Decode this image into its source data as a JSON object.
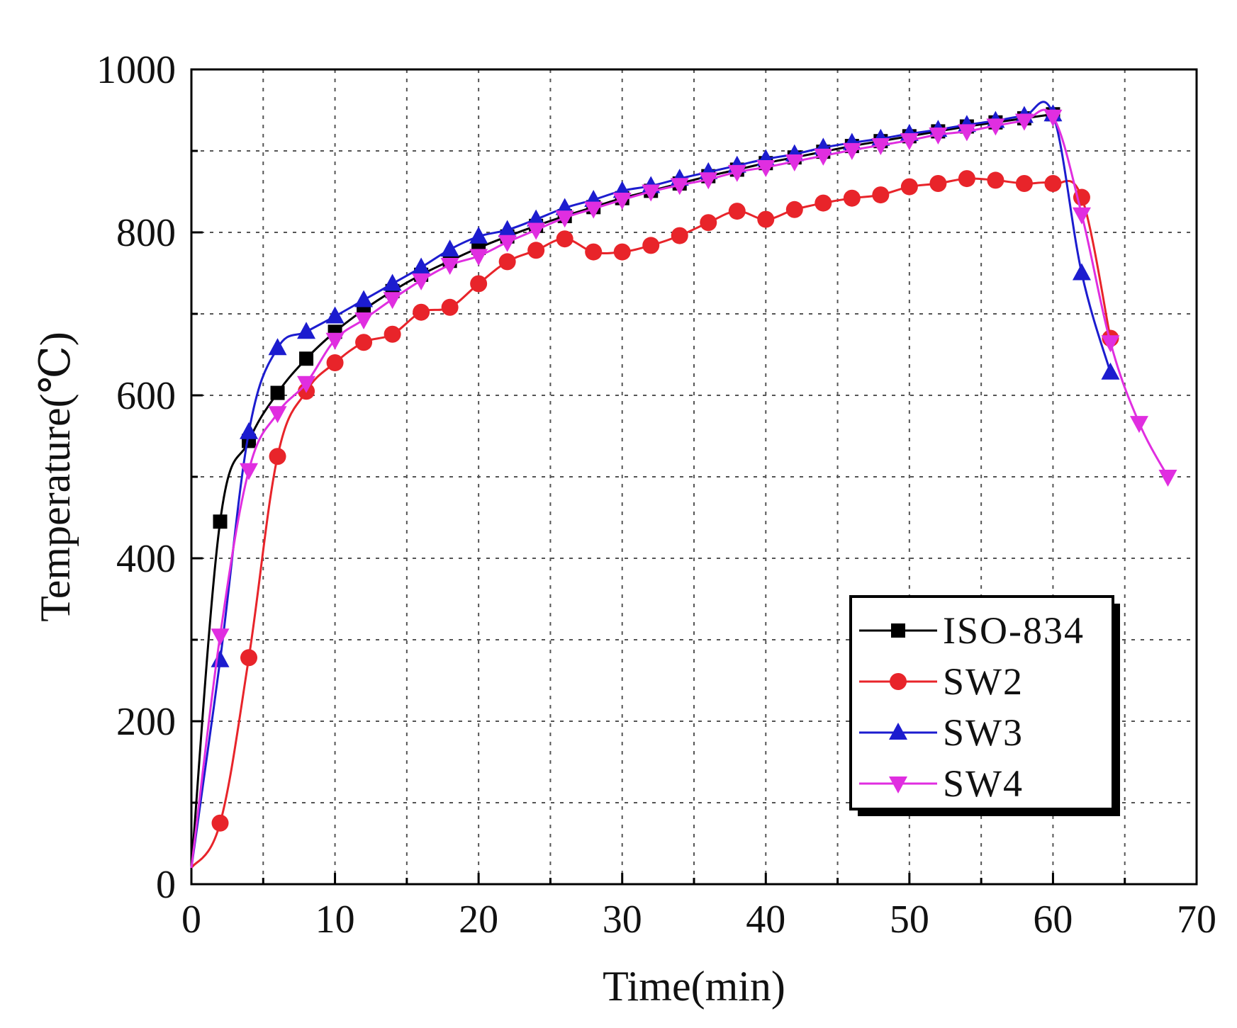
{
  "chart_data": {
    "type": "line",
    "title": "",
    "xlabel": "Time(min)",
    "ylabel": "Temperature(℃)",
    "xlim": [
      0,
      70
    ],
    "ylim": [
      0,
      1000
    ],
    "xticks": [
      0,
      10,
      20,
      30,
      40,
      50,
      60,
      70
    ],
    "yticks": [
      0,
      200,
      400,
      600,
      800,
      1000
    ],
    "grid": true,
    "legend_position": "bottom-right",
    "series": [
      {
        "name": "ISO-834",
        "color": "#000000",
        "marker": "square",
        "x": [
          0,
          2,
          4,
          6,
          8,
          10,
          12,
          14,
          16,
          18,
          20,
          22,
          24,
          26,
          28,
          30,
          32,
          34,
          36,
          38,
          40,
          42,
          44,
          46,
          48,
          50,
          52,
          54,
          56,
          58,
          60
        ],
        "y": [
          20,
          445,
          544,
          603,
          645,
          678,
          705,
          728,
          748,
          765,
          781,
          795,
          808,
          820,
          831,
          842,
          851,
          860,
          869,
          877,
          885,
          892,
          899,
          906,
          912,
          918,
          924,
          930,
          935,
          940,
          945
        ]
      },
      {
        "name": "SW2",
        "color": "#e8242a",
        "marker": "circle",
        "x": [
          0,
          2,
          4,
          6,
          8,
          10,
          12,
          14,
          16,
          18,
          20,
          22,
          24,
          26,
          28,
          30,
          32,
          34,
          36,
          38,
          40,
          42,
          44,
          46,
          48,
          50,
          52,
          54,
          56,
          58,
          60,
          62,
          64
        ],
        "y": [
          20,
          75,
          278,
          525,
          605,
          640,
          665,
          675,
          702,
          708,
          737,
          764,
          778,
          792,
          776,
          776,
          784,
          796,
          812,
          826,
          816,
          828,
          836,
          842,
          846,
          856,
          860,
          866,
          864,
          860,
          860,
          843,
          670
        ]
      },
      {
        "name": "SW3",
        "color": "#1c1ccf",
        "marker": "triangle-up",
        "x": [
          0,
          2,
          4,
          6,
          8,
          10,
          12,
          14,
          16,
          18,
          20,
          22,
          24,
          26,
          28,
          30,
          32,
          34,
          36,
          38,
          40,
          42,
          44,
          46,
          48,
          50,
          52,
          54,
          56,
          58,
          60,
          62,
          64
        ],
        "y": [
          20,
          275,
          555,
          658,
          678,
          697,
          717,
          737,
          757,
          779,
          795,
          803,
          816,
          830,
          840,
          851,
          857,
          866,
          874,
          882,
          890,
          896,
          904,
          910,
          915,
          921,
          926,
          932,
          937,
          943,
          945,
          750,
          628
        ]
      },
      {
        "name": "SW4",
        "color": "#e02ee0",
        "marker": "triangle-down",
        "x": [
          0,
          2,
          4,
          6,
          8,
          10,
          12,
          14,
          16,
          18,
          20,
          22,
          24,
          26,
          28,
          30,
          32,
          34,
          36,
          38,
          40,
          42,
          44,
          46,
          48,
          50,
          52,
          54,
          56,
          58,
          60,
          62,
          64,
          66,
          68
        ],
        "y": [
          20,
          305,
          508,
          578,
          615,
          668,
          693,
          718,
          741,
          760,
          771,
          788,
          803,
          818,
          829,
          840,
          850,
          858,
          865,
          874,
          880,
          887,
          894,
          901,
          907,
          913,
          920,
          924,
          931,
          937,
          942,
          822,
          665,
          566,
          500
        ]
      }
    ]
  }
}
